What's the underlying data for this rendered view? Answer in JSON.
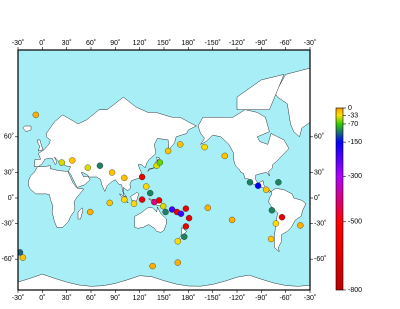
{
  "map": {
    "type": "map",
    "ocean_color": "#a8eef6",
    "land_color": "#ffffff",
    "lon_ticks": [
      {
        "value": -30,
        "label": "-30˚"
      },
      {
        "value": 0,
        "label": "0˚"
      },
      {
        "value": 30,
        "label": "30˚"
      },
      {
        "value": 60,
        "label": "60˚"
      },
      {
        "value": 90,
        "label": "90˚"
      },
      {
        "value": 120,
        "label": "120˚"
      },
      {
        "value": 150,
        "label": "150˚"
      },
      {
        "value": 180,
        "label": "180˚"
      },
      {
        "value": -150,
        "label": "-150˚"
      },
      {
        "value": -120,
        "label": "-120˚"
      },
      {
        "value": -90,
        "label": "-90˚"
      },
      {
        "value": -60,
        "label": "-60˚"
      },
      {
        "value": -30,
        "label": "-30˚"
      }
    ],
    "lat_ticks": [
      {
        "value": 60,
        "label": "60˚"
      },
      {
        "value": 30,
        "label": "30˚"
      },
      {
        "value": 0,
        "label": "0˚"
      },
      {
        "value": -30,
        "label": "-30˚"
      },
      {
        "value": -60,
        "label": "-60˚"
      }
    ],
    "colorbar": {
      "lim": [
        -800,
        0
      ],
      "ticks": [
        0,
        -33,
        -70,
        -150,
        -300,
        -500,
        -800
      ],
      "colors": [
        "#ff9a00",
        "#ffe000",
        "#30d000",
        "#0000ff",
        "#b000ff",
        "#ff0000",
        "#c00000"
      ]
    },
    "quakes": [
      {
        "lon": -8,
        "lat": 71,
        "depth": -10
      },
      {
        "lon": -27.5,
        "lat": -55.5,
        "depth": -110
      },
      {
        "lon": -24,
        "lat": -59,
        "depth": -20
      },
      {
        "lon": 24,
        "lat": 40,
        "depth": -40
      },
      {
        "lon": 37,
        "lat": 42,
        "depth": -20
      },
      {
        "lon": 56,
        "lat": 35,
        "depth": -40
      },
      {
        "lon": 71,
        "lat": 37,
        "depth": -100
      },
      {
        "lon": 86,
        "lat": 30,
        "depth": -20
      },
      {
        "lon": 101,
        "lat": 24,
        "depth": -20
      },
      {
        "lon": 123,
        "lat": 25,
        "depth": -600
      },
      {
        "lon": 141,
        "lat": 37,
        "depth": -40
      },
      {
        "lon": 145,
        "lat": 40,
        "depth": -60
      },
      {
        "lon": 155,
        "lat": 50,
        "depth": -20
      },
      {
        "lon": 170,
        "lat": 55,
        "depth": -20
      },
      {
        "lon": -160,
        "lat": 53,
        "depth": -30
      },
      {
        "lon": -135,
        "lat": 46,
        "depth": -20
      },
      {
        "lon": -104,
        "lat": 19,
        "depth": -100
      },
      {
        "lon": -94,
        "lat": 15,
        "depth": -150
      },
      {
        "lon": -84,
        "lat": 10,
        "depth": -20
      },
      {
        "lon": -69,
        "lat": 19,
        "depth": -100
      },
      {
        "lon": -77,
        "lat": -15,
        "depth": -100
      },
      {
        "lon": -64.5,
        "lat": -23,
        "depth": -600
      },
      {
        "lon": -72,
        "lat": -30,
        "depth": -30
      },
      {
        "lon": -78,
        "lat": -45,
        "depth": -20
      },
      {
        "lon": -42,
        "lat": -32,
        "depth": -10
      },
      {
        "lon": -126,
        "lat": -26,
        "depth": -10
      },
      {
        "lon": -156,
        "lat": -12,
        "depth": -10
      },
      {
        "lon": 167,
        "lat": -62,
        "depth": -10
      },
      {
        "lon": 136,
        "lat": -64,
        "depth": -10
      },
      {
        "lon": 59,
        "lat": -17,
        "depth": -10
      },
      {
        "lon": 101,
        "lat": -2,
        "depth": -30
      },
      {
        "lon": 113,
        "lat": -7,
        "depth": -30
      },
      {
        "lon": 123,
        "lat": -2,
        "depth": -600
      },
      {
        "lon": 128,
        "lat": 14,
        "depth": -30
      },
      {
        "lon": 133,
        "lat": 6,
        "depth": -100
      },
      {
        "lon": 138,
        "lat": -5,
        "depth": -400
      },
      {
        "lon": 144,
        "lat": -3,
        "depth": -600
      },
      {
        "lon": 149,
        "lat": -10,
        "depth": -40
      },
      {
        "lon": 152,
        "lat": -17,
        "depth": -100
      },
      {
        "lon": 160,
        "lat": -14,
        "depth": -200
      },
      {
        "lon": 166,
        "lat": -17,
        "depth": -600
      },
      {
        "lon": 171,
        "lat": -19,
        "depth": -200
      },
      {
        "lon": 177,
        "lat": -13,
        "depth": -600
      },
      {
        "lon": -179,
        "lat": -24,
        "depth": -600
      },
      {
        "lon": 177,
        "lat": -33,
        "depth": -600
      },
      {
        "lon": 175,
        "lat": -43,
        "depth": -100
      },
      {
        "lon": 167,
        "lat": -47,
        "depth": -30
      },
      {
        "lon": 83,
        "lat": -6,
        "depth": -20
      }
    ]
  }
}
